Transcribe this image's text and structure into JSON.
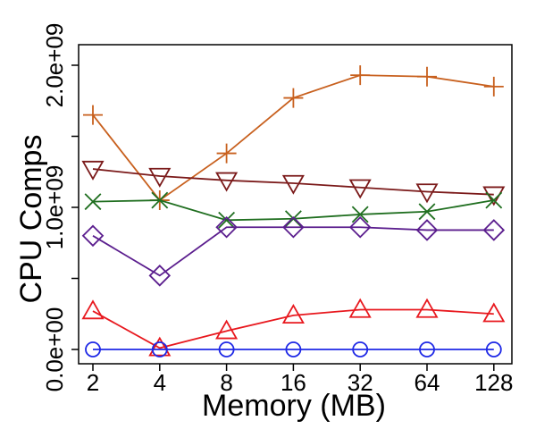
{
  "chart_data": {
    "type": "line",
    "title": "",
    "xlabel": "Memory (MB)",
    "ylabel": "CPU Comps",
    "categories": [
      "2",
      "4",
      "8",
      "16",
      "32",
      "64",
      "128"
    ],
    "yticks": [
      0,
      500000000,
      1000000000,
      1500000000,
      2000000000
    ],
    "ytick_labels": [
      "0.0e+00",
      "",
      "1.0e+09",
      "",
      "2.0e+09"
    ],
    "ylim": [
      -150000000,
      2250000000
    ],
    "grid": false,
    "legend": "none",
    "series": [
      {
        "name": "plus",
        "marker": "plus",
        "color": "#c8601e",
        "values": [
          1650000000,
          1050000000,
          1380000000,
          1770000000,
          1930000000,
          1920000000,
          1850000000
        ]
      },
      {
        "name": "triangle-down",
        "marker": "triangle-down",
        "color": "#7b1a1a",
        "values": [
          1270000000,
          1220000000,
          1190000000,
          1170000000,
          1140000000,
          1110000000,
          1090000000
        ]
      },
      {
        "name": "x",
        "marker": "x",
        "color": "#1f6e1f",
        "values": [
          1040000000,
          1050000000,
          910000000,
          920000000,
          950000000,
          970000000,
          1050000000
        ]
      },
      {
        "name": "diamond",
        "marker": "diamond",
        "color": "#5b1e8e",
        "values": [
          800000000,
          520000000,
          860000000,
          860000000,
          860000000,
          840000000,
          840000000
        ]
      },
      {
        "name": "triangle-up",
        "marker": "triangle-up",
        "color": "#e8181e",
        "values": [
          270000000,
          10000000,
          130000000,
          240000000,
          280000000,
          280000000,
          250000000
        ]
      },
      {
        "name": "circle",
        "marker": "circle",
        "color": "#1e28e6",
        "values": [
          0,
          0,
          0,
          0,
          0,
          0,
          0
        ]
      }
    ]
  }
}
